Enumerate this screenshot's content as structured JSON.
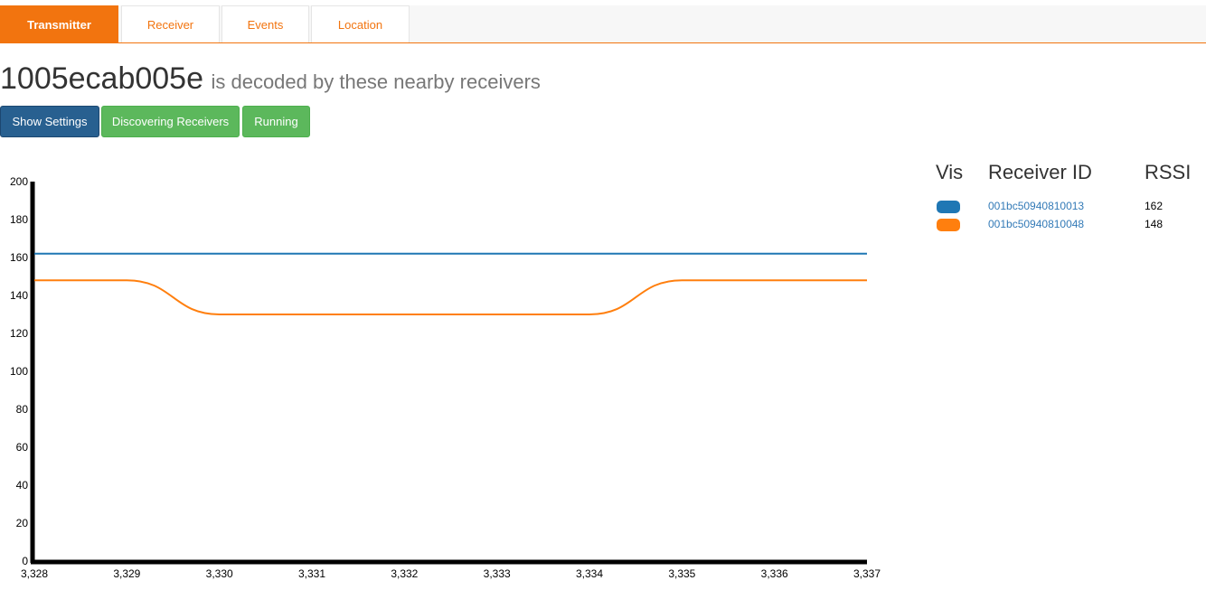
{
  "tabs": [
    {
      "label": "Transmitter",
      "active": true
    },
    {
      "label": "Receiver",
      "active": false
    },
    {
      "label": "Events",
      "active": false
    },
    {
      "label": "Location",
      "active": false
    }
  ],
  "title": {
    "transmitter_id": "1005ecab005e",
    "subtitle": "is decoded by these nearby receivers"
  },
  "buttons": {
    "settings": "Show Settings",
    "discovering": "Discovering Receivers",
    "running": "Running"
  },
  "colors": {
    "accent": "#f2740f",
    "primary": "#286090",
    "success": "#5cb85c",
    "series_blue": "#1f77b4",
    "series_orange": "#ff7f0e"
  },
  "legend": {
    "headers": {
      "vis": "Vis",
      "receiver_id": "Receiver ID",
      "rssi": "RSSI"
    },
    "rows": [
      {
        "receiver_id": "001bc50940810013",
        "rssi": "162",
        "color": "#1f77b4"
      },
      {
        "receiver_id": "001bc50940810048",
        "rssi": "148",
        "color": "#ff7f0e"
      }
    ]
  },
  "chart_data": {
    "type": "line",
    "x": [
      3328,
      3329,
      3330,
      3331,
      3332,
      3333,
      3334,
      3335,
      3336,
      3337
    ],
    "x_tick_labels": [
      "3,328",
      "3,329",
      "3,330",
      "3,331",
      "3,332",
      "3,333",
      "3,334",
      "3,335",
      "3,336",
      "3,337"
    ],
    "y_tick_labels": [
      "0",
      "20",
      "40",
      "60",
      "80",
      "100",
      "120",
      "140",
      "160",
      "180",
      "200"
    ],
    "ylim": [
      0,
      200
    ],
    "xlim": [
      3328,
      3337
    ],
    "grid": false,
    "series": [
      {
        "color": "#1f77b4",
        "values": [
          162,
          162,
          162,
          162,
          162,
          162,
          162,
          162,
          162,
          162
        ]
      },
      {
        "color": "#ff7f0e",
        "values": [
          148,
          148,
          130,
          130,
          130,
          130,
          130,
          148,
          148,
          148
        ]
      }
    ]
  }
}
